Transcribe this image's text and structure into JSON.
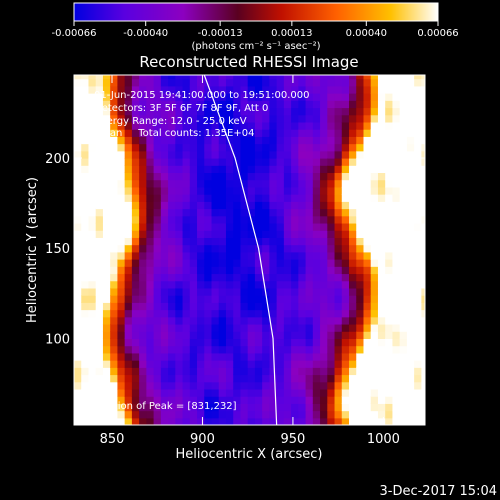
{
  "chart_data": {
    "type": "heatmap",
    "title": "Reconstructed RHESSI Image",
    "xlabel": "Heliocentric X (arcsec)",
    "ylabel": "Heliocentric Y (arcsec)",
    "xlim": [
      829,
      1023
    ],
    "ylim": [
      52,
      246
    ],
    "x_ticks": [
      850,
      900,
      950,
      1000
    ],
    "y_ticks": [
      100,
      150,
      200
    ],
    "colorbar": {
      "ticks": [
        "-0.00066",
        "-0.00040",
        "-0.00013",
        "0.00013",
        "0.00040",
        "0.00066"
      ],
      "label": "(photons cm⁻² s⁻¹ asec⁻²)",
      "range": [
        -0.00066,
        0.00066
      ],
      "colors": [
        "#0000e0",
        "#5a00e0",
        "#8c00c0",
        "#5a0020",
        "#c01000",
        "#ff6000",
        "#ffc000",
        "#ffffff"
      ]
    },
    "annotations": [
      "01-Jun-2015 19:41:00.000 to 19:51:00.000",
      "Detectors: 3F 5F 6F 7F 8F 9F, Att 0",
      "Energy Range: 12.0 - 25.0 keV",
      "Clean     Total counts: 1.35E+04",
      "Position of Peak = [831,232]"
    ],
    "limb_curve_x": [
      [
        52,
        941
      ],
      [
        100,
        939
      ],
      [
        150,
        931
      ],
      [
        200,
        918
      ],
      [
        246,
        901
      ]
    ],
    "footer": "3-Dec-2017 15:04"
  }
}
